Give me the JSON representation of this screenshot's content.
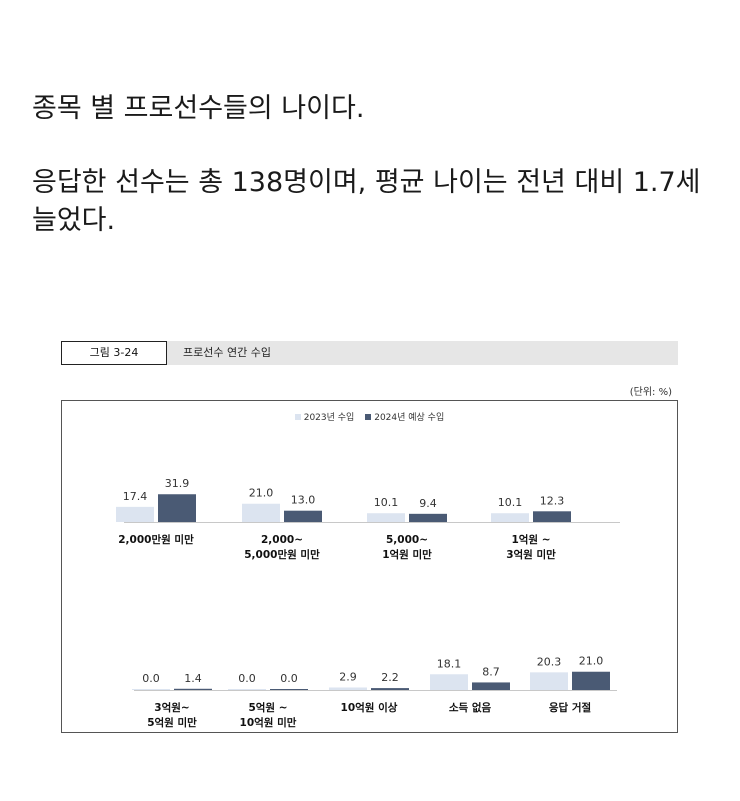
{
  "intro": {
    "line1": "종목 별 프로선수들의 나이다.",
    "line2": "응답한 선수는 총 138명이며, 평균 나이는 전년 대비 1.7세 늘었다."
  },
  "figure": {
    "number": "그림 3-24",
    "title": "프로선수 연간 수입",
    "unit": "(단위: %)"
  },
  "colors": {
    "series_2023": "#dce4f0",
    "series_2024": "#4a5a74"
  },
  "chart_data": {
    "type": "bar",
    "title": "프로선수 연간 수입",
    "unit": "%",
    "categories": [
      [
        "2,000만원 미만"
      ],
      [
        "2,000~",
        "5,000만원 미만"
      ],
      [
        "5,000~",
        "1억원 미만"
      ],
      [
        "1억원 ~",
        "3억원 미만"
      ],
      [
        "3억원~",
        "5억원 미만"
      ],
      [
        "5억원 ~",
        "10억원 미만"
      ],
      [
        "10억원 이상"
      ],
      [
        "소득 없음"
      ],
      [
        "응답 거절"
      ]
    ],
    "series": [
      {
        "name": "2023년 수입",
        "values": [
          17.4,
          21.0,
          10.1,
          10.1,
          0.0,
          0.0,
          2.9,
          18.1,
          20.3
        ]
      },
      {
        "name": "2024년 예상 수입",
        "values": [
          31.9,
          13.0,
          9.4,
          12.3,
          1.4,
          0.0,
          2.2,
          8.7,
          21.0
        ]
      }
    ],
    "legend_position": "top-center",
    "grid": false
  }
}
